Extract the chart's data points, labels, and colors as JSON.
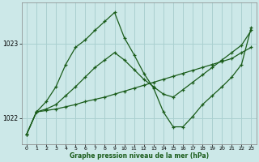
{
  "xlabel": "Graphe pression niveau de la mer (hPa)",
  "background_color": "#cce8e8",
  "plot_bg_color": "#cce8e8",
  "line_color": "#1a5c1a",
  "grid_color": "#aad0d0",
  "x_ticks": [
    0,
    1,
    2,
    3,
    4,
    5,
    6,
    7,
    8,
    9,
    10,
    11,
    12,
    13,
    14,
    15,
    16,
    17,
    18,
    19,
    20,
    21,
    22,
    23
  ],
  "ylim": [
    1021.65,
    1023.55
  ],
  "yticks": [
    1022,
    1023
  ],
  "series": [
    {
      "x": [
        0,
        1,
        2,
        3,
        4,
        5,
        6,
        7,
        8,
        9,
        10,
        11,
        12,
        13,
        14,
        15,
        16,
        17,
        18,
        19,
        20,
        21,
        22,
        23
      ],
      "y": [
        1021.78,
        1022.08,
        1022.1,
        1022.12,
        1022.15,
        1022.18,
        1022.22,
        1022.25,
        1022.28,
        1022.32,
        1022.36,
        1022.4,
        1022.44,
        1022.48,
        1022.52,
        1022.56,
        1022.6,
        1022.64,
        1022.68,
        1022.72,
        1022.76,
        1022.8,
        1022.88,
        1022.95
      ]
    },
    {
      "x": [
        0,
        1,
        2,
        3,
        4,
        5,
        6,
        7,
        8,
        9,
        10,
        11,
        12,
        13,
        14,
        15,
        16,
        17,
        18,
        19,
        20,
        21,
        22,
        23
      ],
      "y": [
        1021.78,
        1022.08,
        1022.12,
        1022.18,
        1022.3,
        1022.42,
        1022.55,
        1022.68,
        1022.78,
        1022.88,
        1022.78,
        1022.65,
        1022.52,
        1022.42,
        1022.32,
        1022.28,
        1022.38,
        1022.48,
        1022.58,
        1022.68,
        1022.78,
        1022.88,
        1022.98,
        1023.18
      ]
    },
    {
      "x": [
        0,
        1,
        2,
        3,
        4,
        5,
        6,
        7,
        8,
        9,
        10,
        11,
        12,
        13,
        14,
        15,
        16,
        17,
        18,
        19,
        20,
        21,
        22,
        23
      ],
      "y": [
        1021.78,
        1022.08,
        1022.22,
        1022.42,
        1022.72,
        1022.95,
        1023.05,
        1023.18,
        1023.3,
        1023.42,
        1023.08,
        1022.85,
        1022.6,
        1022.4,
        1022.08,
        1021.88,
        1021.88,
        1022.02,
        1022.18,
        1022.3,
        1022.42,
        1022.55,
        1022.72,
        1023.22
      ]
    }
  ]
}
